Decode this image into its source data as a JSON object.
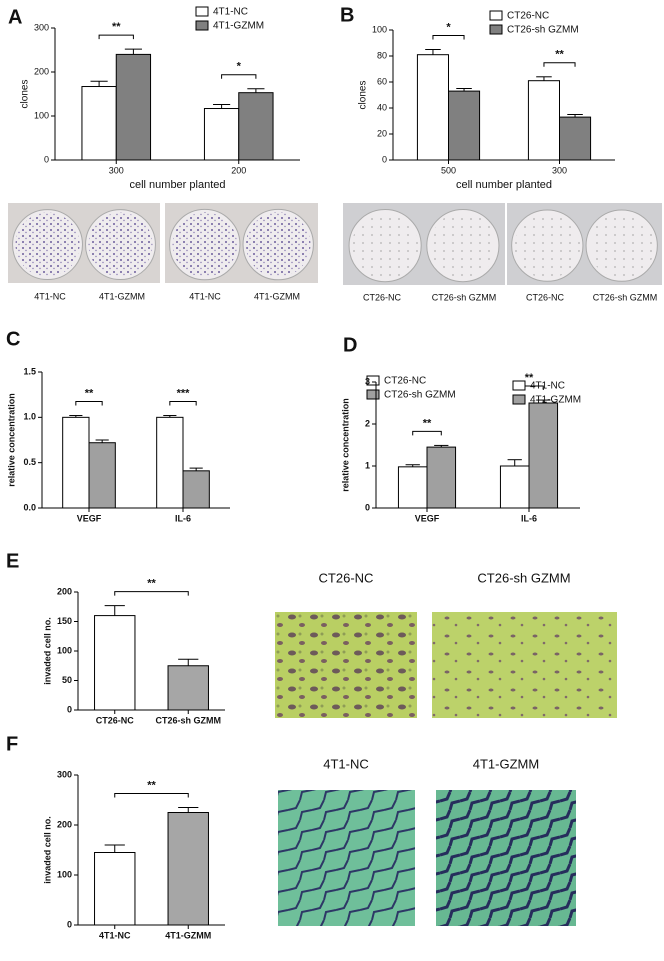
{
  "chart_data": [
    {
      "type": "bar",
      "panel": "A",
      "y_label": "clones",
      "x_label": "cell number planted",
      "categories": [
        "300",
        "200"
      ],
      "series": [
        {
          "name": "4T1-NC",
          "color": "#ffffff",
          "values": [
            167,
            117
          ],
          "errors": [
            12,
            9
          ]
        },
        {
          "name": "4T1-GZMM",
          "color": "#808080",
          "values": [
            240,
            153
          ],
          "errors": [
            12,
            9
          ]
        }
      ],
      "annotations": [
        "**",
        "*"
      ],
      "ylim": [
        0,
        300
      ],
      "yticks": [
        0,
        100,
        200,
        300
      ],
      "image_labels": [
        "4T1-NC",
        "4T1-GZMM",
        "4T1-NC",
        "4T1-GZMM"
      ]
    },
    {
      "type": "bar",
      "panel": "B",
      "y_label": "clones",
      "x_label": "cell number planted",
      "categories": [
        "500",
        "300"
      ],
      "series": [
        {
          "name": "CT26-NC",
          "color": "#ffffff",
          "values": [
            81,
            61
          ],
          "errors": [
            4,
            3
          ]
        },
        {
          "name": "CT26-sh GZMM",
          "color": "#808080",
          "values": [
            53,
            33
          ],
          "errors": [
            2,
            2
          ]
        }
      ],
      "annotations": [
        "*",
        "**"
      ],
      "ylim": [
        0,
        100
      ],
      "yticks": [
        0,
        20,
        40,
        60,
        80,
        100
      ],
      "image_labels": [
        "CT26-NC",
        "CT26-sh GZMM",
        "CT26-NC",
        "CT26-sh GZMM"
      ]
    },
    {
      "type": "bar",
      "panel": "C",
      "y_label": "relative concentration",
      "categories": [
        "VEGF",
        "IL-6"
      ],
      "series": [
        {
          "name": "CT26-NC",
          "color": "#ffffff",
          "values": [
            1.0,
            1.0
          ],
          "errors": [
            0.02,
            0.02
          ]
        },
        {
          "name": "CT26-sh GZMM",
          "color": "#a0a0a0",
          "values": [
            0.72,
            0.41
          ],
          "errors": [
            0.03,
            0.03
          ]
        }
      ],
      "annotations": [
        "**",
        "***"
      ],
      "ylim": [
        0,
        1.5
      ],
      "yticks": [
        {
          "value": 0,
          "label": "0.0"
        },
        {
          "value": 0.5,
          "label": "0.5"
        },
        {
          "value": 1,
          "label": "1.0"
        },
        {
          "value": 1.5,
          "label": "1.5"
        }
      ]
    },
    {
      "type": "bar",
      "panel": "D",
      "y_label": "relative concentration",
      "categories": [
        "VEGF",
        "IL-6"
      ],
      "series": [
        {
          "name": "4T1-NC",
          "color": "#ffffff",
          "values": [
            0.98,
            1.0
          ],
          "errors": [
            0.05,
            0.15
          ]
        },
        {
          "name": "4T1-GZMM",
          "color": "#a0a0a0",
          "values": [
            1.45,
            2.5
          ],
          "errors": [
            0.04,
            0.07
          ]
        }
      ],
      "annotations": [
        "**",
        "**"
      ],
      "ylim": [
        0,
        3
      ],
      "yticks": [
        0,
        1,
        2,
        3
      ]
    },
    {
      "type": "bar",
      "panel": "E",
      "y_label": "invaded cell no.",
      "categories": [
        "CT26-NC",
        "CT26-sh GZMM"
      ],
      "series": [
        {
          "colors": [
            "#ffffff",
            "#a6a6a6"
          ],
          "values": [
            160,
            75
          ],
          "errors": [
            17,
            11
          ]
        }
      ],
      "annotation": "**",
      "ylim": [
        0,
        200
      ],
      "yticks": [
        0,
        50,
        100,
        150,
        200
      ],
      "image_labels": [
        "CT26-NC",
        "CT26-sh GZMM"
      ]
    },
    {
      "type": "bar",
      "panel": "F",
      "y_label": "invaded cell no.",
      "categories": [
        "4T1-NC",
        "4T1-GZMM"
      ],
      "series": [
        {
          "colors": [
            "#ffffff",
            "#a6a6a6"
          ],
          "values": [
            145,
            225
          ],
          "errors": [
            15,
            10
          ]
        }
      ],
      "annotation": "**",
      "ylim": [
        0,
        300
      ],
      "yticks": [
        0,
        100,
        200,
        300
      ],
      "image_labels": [
        "4T1-NC",
        "4T1-GZMM"
      ]
    }
  ]
}
